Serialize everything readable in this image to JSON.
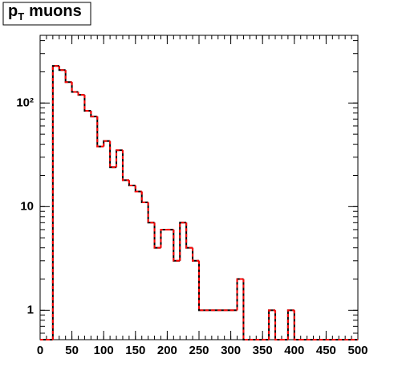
{
  "chart_data": {
    "type": "histogram",
    "title": "p",
    "title_subscript": "T",
    "title_rest": "muons",
    "bins": [
      0,
      10,
      20,
      30,
      40,
      50,
      60,
      70,
      80,
      90,
      100,
      110,
      120,
      130,
      140,
      150,
      160,
      170,
      180,
      190,
      200,
      210,
      220,
      230,
      240,
      250,
      260,
      270,
      280,
      290,
      300,
      310,
      320,
      330,
      340,
      350,
      360,
      370,
      380,
      390,
      400,
      410,
      420,
      430,
      440,
      450,
      460,
      470,
      480,
      490,
      500
    ],
    "series": [
      {
        "color": "#000000",
        "values": [
          0,
          0,
          228,
          208,
          159,
          128,
          120,
          84,
          74,
          38,
          43,
          24,
          35,
          18,
          16,
          14,
          11,
          7,
          4,
          6,
          6,
          3,
          7,
          4,
          3,
          1,
          1,
          1,
          1,
          1,
          1,
          2,
          0,
          0,
          0,
          0,
          1,
          0,
          0,
          1,
          0,
          0,
          0,
          0,
          0,
          0,
          0,
          0,
          0,
          0
        ]
      },
      {
        "color": "#ff0000",
        "values": [
          0,
          0,
          228,
          208,
          159,
          128,
          120,
          84,
          74,
          38,
          43,
          24,
          35,
          18,
          16,
          14,
          11,
          7,
          4,
          6,
          6,
          3,
          7,
          4,
          3,
          1,
          1,
          1,
          1,
          1,
          1,
          2,
          0,
          0,
          0,
          0,
          1,
          0,
          0,
          1,
          0,
          0,
          0,
          0,
          0,
          0,
          0,
          0,
          0,
          0
        ]
      }
    ],
    "xlim": [
      0,
      500
    ],
    "xticks": [
      0,
      50,
      100,
      150,
      200,
      250,
      300,
      350,
      400,
      450,
      500
    ],
    "ylim": [
      0.52,
      450
    ],
    "yticks": [
      1,
      10,
      {
        "value": 100,
        "label": "10²"
      }
    ],
    "log_y": true
  }
}
